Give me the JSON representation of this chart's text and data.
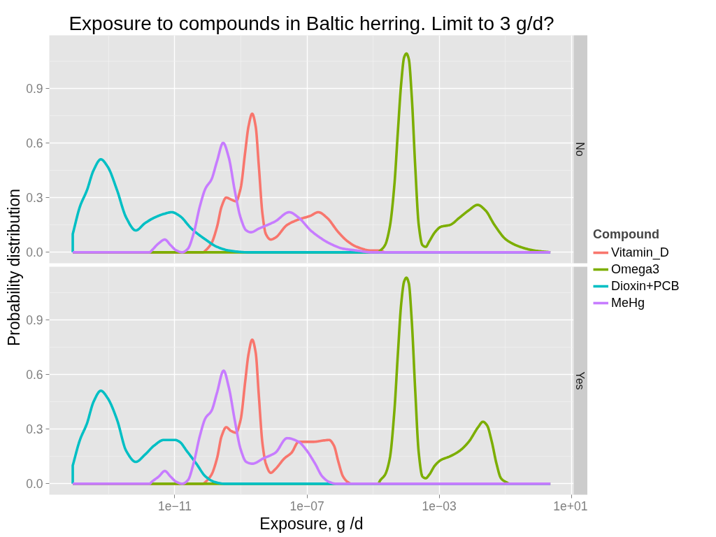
{
  "chart_data": [
    {
      "type": "line",
      "title": "Exposure to compounds in Baltic herring. Limit to 3 g/d?",
      "subtitle": "No",
      "ylabel": "Probability distribution",
      "legend_title": "Compound",
      "legend": "right",
      "tick_labels": "y",
      "log": "x",
      "grid": true,
      "xlim": [
        1.6e-15,
        11.7
      ],
      "xticks": [
        1e-11,
        1e-07,
        0.001,
        10
      ],
      "ylim": [
        -0.06,
        1.19
      ],
      "yticks": [
        {
          "value": 0,
          "label": "0.0"
        },
        0.3,
        0.6,
        0.9
      ],
      "series": [
        {
          "name": "Vitamin_D",
          "color": "#f8766d",
          "x": [
            8.2e-15,
            7.2e-11,
            8.5e-11,
            1.29e-10,
            1.9e-10,
            2.6e-10,
            3.6e-10,
            5e-10,
            7.1e-10,
            9.8e-10,
            1.35e-09,
            1.7e-09,
            2.2e-09,
            2.8e-09,
            3.5e-09,
            4.5e-09,
            5.7e-09,
            8e-09,
            1.1e-08,
            2.5e-08,
            5.6e-08,
            1.26e-07,
            2.2e-07,
            4e-07,
            8.9e-07,
            1.7e-06,
            3.2e-06,
            8.7e-06,
            1.66e-05,
            2.3e-05,
            2.3
          ],
          "values": [
            0,
            0,
            0.01,
            0.05,
            0.14,
            0.25,
            0.3,
            0.29,
            0.28,
            0.35,
            0.55,
            0.69,
            0.76,
            0.69,
            0.47,
            0.21,
            0.1,
            0.07,
            0.08,
            0.15,
            0.18,
            0.2,
            0.22,
            0.19,
            0.11,
            0.06,
            0.03,
            0.01,
            0.01,
            0,
            0
          ]
        },
        {
          "name": "Omega3",
          "color": "#7cae00",
          "x": [
            8.2e-15,
            1.4e-05,
            1.66e-05,
            2.3e-05,
            3.2e-05,
            4.4e-05,
            5.6e-05,
            7.1e-05,
            8.7e-05,
            0.000102,
            0.00012,
            0.000148,
            0.000188,
            0.00024,
            0.00031,
            0.00039,
            0.0005,
            0.00074,
            0.00112,
            0.0021,
            0.0041,
            0.0078,
            0.0145,
            0.025,
            0.047,
            0.105,
            0.28,
            0.74,
            2.3
          ],
          "values": [
            0,
            0,
            0.01,
            0.04,
            0.14,
            0.37,
            0.66,
            0.93,
            1.07,
            1.09,
            1.06,
            0.85,
            0.47,
            0.15,
            0.04,
            0.03,
            0.06,
            0.11,
            0.14,
            0.15,
            0.19,
            0.23,
            0.26,
            0.23,
            0.15,
            0.07,
            0.03,
            0.01,
            0
          ]
        },
        {
          "name": "Dioxin+PCB",
          "color": "#00bfc4",
          "x": [
            8.2e-15,
            8.2e-15,
            1.35e-14,
            2.2e-14,
            3.5e-14,
            5.8e-14,
            9.3e-14,
            1.8e-13,
            3.4e-13,
            6.6e-13,
            1.26e-12,
            2.4e-12,
            4.6e-12,
            8.1e-12,
            1.4e-11,
            3.2e-11,
            8.5e-11,
            1.9e-10,
            4.3e-10,
            1.6e-09,
            2.3
          ],
          "values": [
            0,
            0.1,
            0.25,
            0.34,
            0.45,
            0.51,
            0.47,
            0.34,
            0.19,
            0.12,
            0.16,
            0.19,
            0.21,
            0.22,
            0.2,
            0.13,
            0.07,
            0.03,
            0.01,
            0,
            0
          ]
        },
        {
          "name": "MeHg",
          "color": "#c77cff",
          "x": [
            8.2e-15,
            1.74e-12,
            2e-12,
            3.3e-12,
            5e-12,
            7.4e-12,
            1.12e-11,
            1.7e-11,
            2.5e-11,
            3.8e-11,
            5.7e-11,
            8.5e-11,
            1.29e-10,
            1.9e-10,
            2.9e-10,
            4.3e-10,
            6.5e-10,
            9.8e-10,
            1.45e-09,
            2e-09,
            3.5e-09,
            1.1e-08,
            2.9e-08,
            5.6e-08,
            1.29e-07,
            2.5e-07,
            4.7e-07,
            1.23e-06,
            3.2e-06,
            8.7e-06,
            2.3
          ],
          "values": [
            0,
            0,
            0.01,
            0.05,
            0.07,
            0.04,
            0.01,
            0,
            0.02,
            0.11,
            0.25,
            0.35,
            0.4,
            0.5,
            0.6,
            0.52,
            0.34,
            0.19,
            0.12,
            0.11,
            0.13,
            0.17,
            0.22,
            0.19,
            0.12,
            0.08,
            0.05,
            0.02,
            0.01,
            0,
            0
          ]
        }
      ]
    },
    {
      "type": "line",
      "subtitle": "Yes",
      "xlabel": "Exposure, g /d",
      "log": "x",
      "grid": true,
      "xlim": [
        1.6e-15,
        11.7
      ],
      "xticks": [
        {
          "value": 1e-11,
          "label": "1e−11"
        },
        {
          "value": 1e-07,
          "label": "1e−07"
        },
        {
          "value": 0.001,
          "label": "1e−03"
        },
        {
          "value": 10,
          "label": "1e+01"
        }
      ],
      "ylim": [
        -0.06,
        1.19
      ],
      "yticks": [
        {
          "value": 0,
          "label": "0.0"
        },
        0.3,
        0.6,
        0.9
      ],
      "series": [
        {
          "color": "#f8766d",
          "x": [
            8.2e-15,
            7.2e-11,
            8.5e-11,
            1.29e-10,
            1.9e-10,
            2.6e-10,
            3.6e-10,
            5e-10,
            7.1e-10,
            9.8e-10,
            1.35e-09,
            1.7e-09,
            2.2e-09,
            2.8e-09,
            3.5e-09,
            4.5e-09,
            5.7e-09,
            8e-09,
            1.1e-08,
            2.1e-08,
            3.4e-08,
            5.6e-08,
            9.1e-08,
            1.5e-07,
            4.7e-07,
            6.5e-07,
            8.9e-07,
            1.23e-06,
            1.7e-06,
            2.2e-06,
            2.3
          ],
          "values": [
            0,
            0,
            0.01,
            0.05,
            0.14,
            0.26,
            0.31,
            0.29,
            0.28,
            0.35,
            0.56,
            0.71,
            0.79,
            0.72,
            0.48,
            0.22,
            0.11,
            0.06,
            0.08,
            0.14,
            0.17,
            0.23,
            0.23,
            0.23,
            0.24,
            0.21,
            0.12,
            0.04,
            0.01,
            0,
            0
          ]
        },
        {
          "color": "#7cae00",
          "x": [
            8.2e-15,
            1.4e-05,
            1.66e-05,
            2.3e-05,
            3.2e-05,
            4.4e-05,
            5.6e-05,
            7.1e-05,
            8.7e-05,
            0.000102,
            0.00012,
            0.000148,
            0.000188,
            0.00024,
            0.00031,
            0.00039,
            0.0005,
            0.00074,
            0.00112,
            0.0021,
            0.0041,
            0.0078,
            0.015,
            0.021,
            0.028,
            0.039,
            0.054,
            0.074,
            0.103,
            0.14,
            2.3
          ],
          "values": [
            0,
            0,
            0.02,
            0.05,
            0.14,
            0.4,
            0.71,
            0.99,
            1.11,
            1.13,
            1.1,
            0.89,
            0.51,
            0.17,
            0.04,
            0.03,
            0.05,
            0.1,
            0.13,
            0.15,
            0.18,
            0.23,
            0.31,
            0.34,
            0.32,
            0.23,
            0.11,
            0.03,
            0.01,
            0,
            0
          ]
        },
        {
          "color": "#00bfc4",
          "x": [
            8.2e-15,
            8.2e-15,
            1.35e-14,
            2.2e-14,
            3.5e-14,
            5.8e-14,
            9.3e-14,
            1.8e-13,
            3.4e-13,
            6.6e-13,
            1.26e-12,
            2.4e-12,
            4.6e-12,
            1.03e-11,
            1.4e-11,
            2.3e-11,
            4.5e-11,
            8.5e-11,
            1.6e-10,
            3.1e-10,
            2.3
          ],
          "values": [
            0,
            0.1,
            0.24,
            0.33,
            0.45,
            0.51,
            0.47,
            0.35,
            0.18,
            0.12,
            0.16,
            0.21,
            0.24,
            0.24,
            0.23,
            0.18,
            0.11,
            0.04,
            0.01,
            0,
            0
          ]
        },
        {
          "color": "#c77cff",
          "x": [
            8.2e-15,
            1.74e-12,
            2e-12,
            3.3e-12,
            5e-12,
            7.4e-12,
            1.12e-11,
            1.7e-11,
            2.5e-11,
            3.8e-11,
            5.7e-11,
            8.5e-11,
            1.29e-10,
            1.9e-10,
            3e-10,
            4.3e-10,
            6.5e-10,
            9.8e-10,
            1.45e-09,
            2.2e-09,
            4.9e-09,
            1.1e-08,
            2.5e-08,
            5.6e-08,
            9.1e-08,
            1.76e-07,
            2.9e-07,
            4.7e-07,
            7.6e-07,
            2.3
          ],
          "values": [
            0,
            0,
            0.01,
            0.04,
            0.07,
            0.04,
            0.01,
            0,
            0.02,
            0.12,
            0.26,
            0.36,
            0.4,
            0.5,
            0.62,
            0.53,
            0.35,
            0.19,
            0.12,
            0.11,
            0.14,
            0.17,
            0.25,
            0.23,
            0.19,
            0.11,
            0.04,
            0.01,
            0,
            0
          ]
        }
      ]
    }
  ]
}
